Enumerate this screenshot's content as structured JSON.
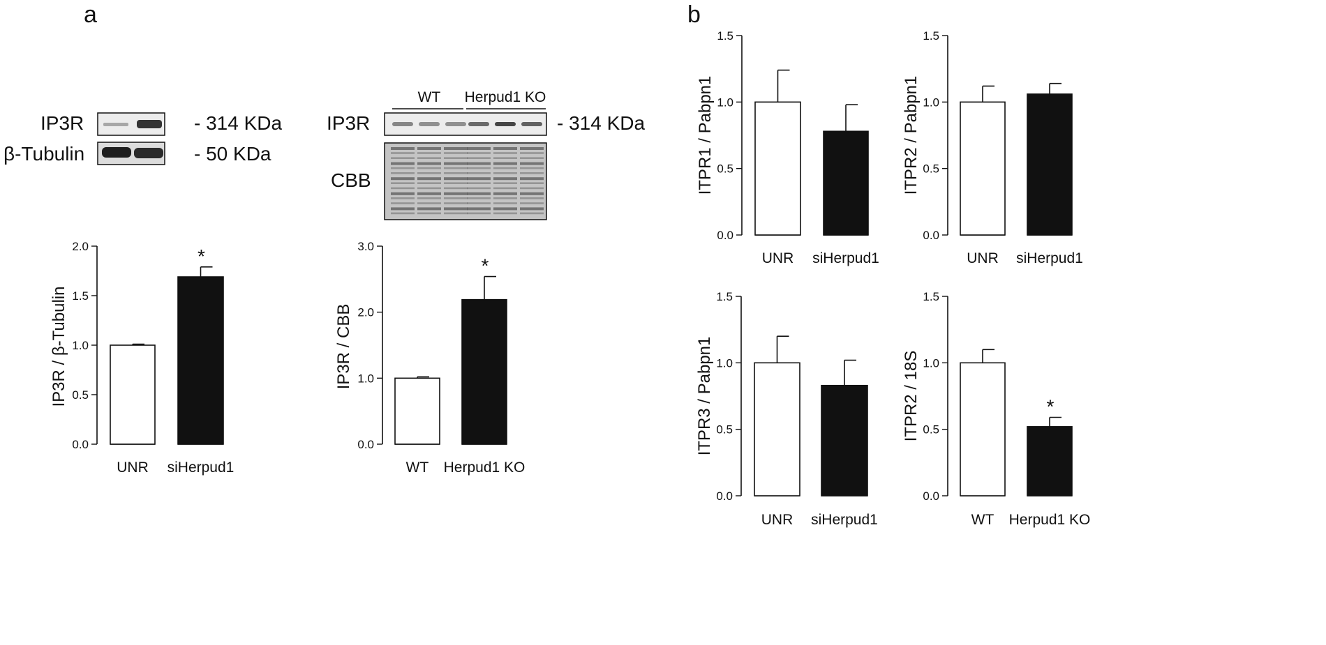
{
  "panels": [
    {
      "letter": "a"
    },
    {
      "letter": "b"
    }
  ],
  "blots": {
    "left": {
      "rows": [
        {
          "protein": "IP3R",
          "size": "- 314 KDa"
        },
        {
          "protein": "β-Tubulin",
          "size": "- 50 KDa"
        }
      ]
    },
    "right": {
      "groups": [
        "WT",
        "Herpud1 KO"
      ],
      "rows": [
        {
          "protein": "IP3R",
          "size": "- 314 KDa"
        },
        {
          "protein": "CBB",
          "size": ""
        }
      ]
    }
  },
  "colors": {
    "control_bar": "#ffffff",
    "treated_bar": "#111111",
    "axis": "#111111"
  },
  "chart_data": [
    {
      "type": "bar",
      "categories": [
        "UNR",
        "siHerpud1"
      ],
      "values": [
        1.0,
        1.69
      ],
      "errors": [
        0.01,
        0.1
      ],
      "significance": [
        "",
        "*"
      ],
      "bar_colors": [
        "#ffffff",
        "#111111"
      ],
      "ylabel": "IP3R / β-Tubulin",
      "ylim": [
        0,
        2.0
      ],
      "yticks": [
        "0.0",
        "0.5",
        "1.0",
        "1.5",
        "2.0"
      ]
    },
    {
      "type": "bar",
      "categories": [
        "WT",
        "Herpud1 KO"
      ],
      "values": [
        1.0,
        2.19
      ],
      "errors": [
        0.02,
        0.35
      ],
      "significance": [
        "",
        "*"
      ],
      "bar_colors": [
        "#ffffff",
        "#111111"
      ],
      "ylabel": "IP3R / CBB",
      "ylim": [
        0,
        3.0
      ],
      "yticks": [
        "0.0",
        "1.0",
        "2.0",
        "3.0"
      ]
    },
    {
      "type": "bar",
      "categories": [
        "UNR",
        "siHerpud1"
      ],
      "values": [
        1.0,
        0.78
      ],
      "errors": [
        0.24,
        0.2
      ],
      "significance": [
        "",
        ""
      ],
      "bar_colors": [
        "#ffffff",
        "#111111"
      ],
      "ylabel": "ITPR1 / Pabpn1",
      "ylim": [
        0,
        1.5
      ],
      "yticks": [
        "0.0",
        "0.5",
        "1.0",
        "1.5"
      ]
    },
    {
      "type": "bar",
      "categories": [
        "UNR",
        "siHerpud1"
      ],
      "values": [
        1.0,
        1.06
      ],
      "errors": [
        0.12,
        0.08
      ],
      "significance": [
        "",
        ""
      ],
      "bar_colors": [
        "#ffffff",
        "#111111"
      ],
      "ylabel": "ITPR2 / Pabpn1",
      "ylim": [
        0,
        1.5
      ],
      "yticks": [
        "0.0",
        "0.5",
        "1.0",
        "1.5"
      ]
    },
    {
      "type": "bar",
      "categories": [
        "UNR",
        "siHerpud1"
      ],
      "values": [
        1.0,
        0.83
      ],
      "errors": [
        0.2,
        0.19
      ],
      "significance": [
        "",
        ""
      ],
      "bar_colors": [
        "#ffffff",
        "#111111"
      ],
      "ylabel": "ITPR3 / Pabpn1",
      "ylim": [
        0,
        1.5
      ],
      "yticks": [
        "0.0",
        "0.5",
        "1.0",
        "1.5"
      ]
    },
    {
      "type": "bar",
      "categories": [
        "WT",
        "Herpud1 KO"
      ],
      "values": [
        1.0,
        0.52
      ],
      "errors": [
        0.1,
        0.07
      ],
      "significance": [
        "",
        "*"
      ],
      "bar_colors": [
        "#ffffff",
        "#111111"
      ],
      "ylabel": "ITPR2 / 18S",
      "ylim": [
        0,
        1.5
      ],
      "yticks": [
        "0.0",
        "0.5",
        "1.0",
        "1.5"
      ]
    }
  ]
}
